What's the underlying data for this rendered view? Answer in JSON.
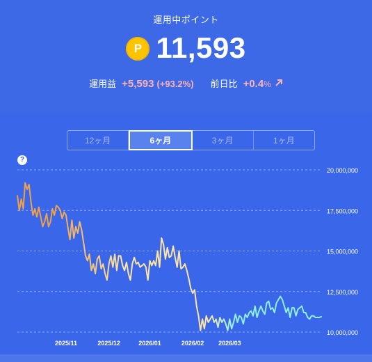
{
  "header": {
    "title": "運用中ポイント"
  },
  "points": {
    "coin_symbol": "P",
    "value": "11,593"
  },
  "stats": {
    "profit_label": "運用益",
    "profit_value": "+5,593",
    "profit_pct": "(+93.2%)",
    "daily_label": "前日比",
    "daily_value": "+0.4",
    "daily_unit": "%"
  },
  "colors": {
    "background": "#3a66ea",
    "positive": "#ffb3b8",
    "coin": "#ffc400",
    "line_start": "#f0a048",
    "line_mid": "#ffe6a0",
    "line_end": "#8ff0e6"
  },
  "tabs": [
    {
      "label": "12ヶ月",
      "active": false
    },
    {
      "label": "6ヶ月",
      "active": true
    },
    {
      "label": "3ヶ月",
      "active": false
    },
    {
      "label": "1ヶ月",
      "active": false
    }
  ],
  "help": {
    "symbol": "?"
  },
  "chart_data": {
    "type": "line",
    "y_ticks": [
      "20,000,000",
      "17,500,000",
      "15,000,000",
      "12,500,000",
      "10,000,000"
    ],
    "ylim": [
      10000000,
      20000000
    ],
    "x_ticks": [
      {
        "label": "2025/11",
        "index": 25
      },
      {
        "label": "2025/12",
        "index": 47
      },
      {
        "label": "2026/01",
        "index": 68
      },
      {
        "label": "2026/02",
        "index": 90
      },
      {
        "label": "2026/03",
        "index": 109
      }
    ],
    "grid": true,
    "series": [
      {
        "values": [
          18400000,
          17500000,
          18200000,
          17600000,
          19200000,
          18800000,
          19100000,
          18000000,
          17200000,
          17600000,
          17100000,
          17700000,
          17100000,
          16500000,
          16800000,
          17300000,
          16500000,
          16800000,
          17600000,
          17200000,
          17800000,
          17700000,
          17500000,
          17000000,
          17400000,
          17200000,
          16400000,
          15700000,
          16900000,
          15800000,
          16500000,
          16100000,
          16800000,
          16300000,
          15500000,
          14700000,
          14400000,
          14800000,
          13800000,
          14200000,
          13600000,
          14500000,
          14700000,
          13900000,
          14200000,
          13600000,
          13200000,
          14200000,
          14700000,
          14000000,
          14800000,
          13800000,
          14700000,
          14700000,
          14100000,
          13800000,
          14300000,
          13600000,
          13200000,
          14200000,
          14600000,
          14200000,
          14300000,
          14000000,
          14100000,
          14200000,
          14000000,
          13200000,
          14400000,
          14100000,
          14400000,
          14100000,
          15000000,
          14000000,
          15800000,
          15400000,
          14500000,
          15200000,
          14600000,
          14700000,
          15300000,
          14600000,
          14000000,
          15000000,
          13900000,
          14000000,
          14200000,
          13800000,
          13300000,
          12700000,
          12400000,
          12600000,
          11600000,
          11000000,
          10100000,
          10800000,
          10200000,
          11000000,
          10600000,
          10800000,
          11000000,
          10600000,
          10800000,
          10300000,
          10900000,
          10600000,
          10800000,
          10500000,
          10100000,
          10800000,
          10200000,
          10600000,
          11100000,
          10600000,
          11000000,
          10900000,
          10500000,
          11100000,
          10900000,
          11200000,
          11300000,
          11000000,
          11600000,
          10900000,
          11300000,
          11600000,
          11300000,
          11100000,
          11800000,
          11900000,
          11400000,
          11500000,
          11200000,
          11800000,
          12000000,
          12200000,
          12000000,
          11600000,
          11200000,
          11500000,
          10900000,
          11500000,
          11500000,
          11000000,
          11400000,
          11500000,
          11600000,
          11200000,
          11200000,
          10900000,
          10800000,
          11000000,
          11000000,
          10900000,
          10900000,
          10900000,
          10950000
        ]
      }
    ]
  }
}
